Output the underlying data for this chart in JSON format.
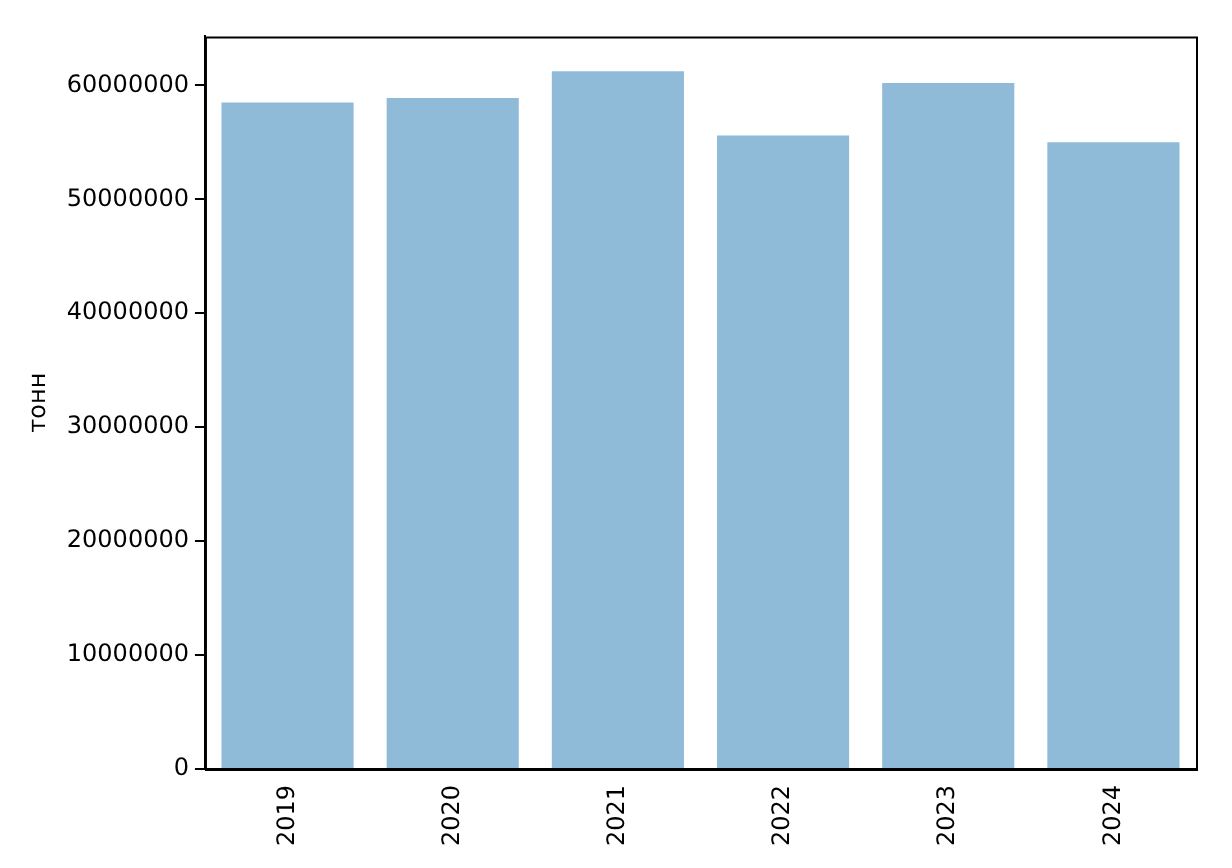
{
  "chart_data": {
    "type": "bar",
    "ylabel": "тонн",
    "categories": [
      "2019",
      "2020",
      "2021",
      "2022",
      "2023",
      "2024"
    ],
    "values": [
      58500000,
      58900000,
      61250000,
      55600000,
      60200000,
      55000000
    ],
    "color": "#8fbbd9",
    "ylim": [
      0,
      64300000
    ],
    "yticks": [
      0,
      10000000,
      20000000,
      30000000,
      40000000,
      50000000,
      60000000
    ],
    "grid": false,
    "legend": false
  }
}
